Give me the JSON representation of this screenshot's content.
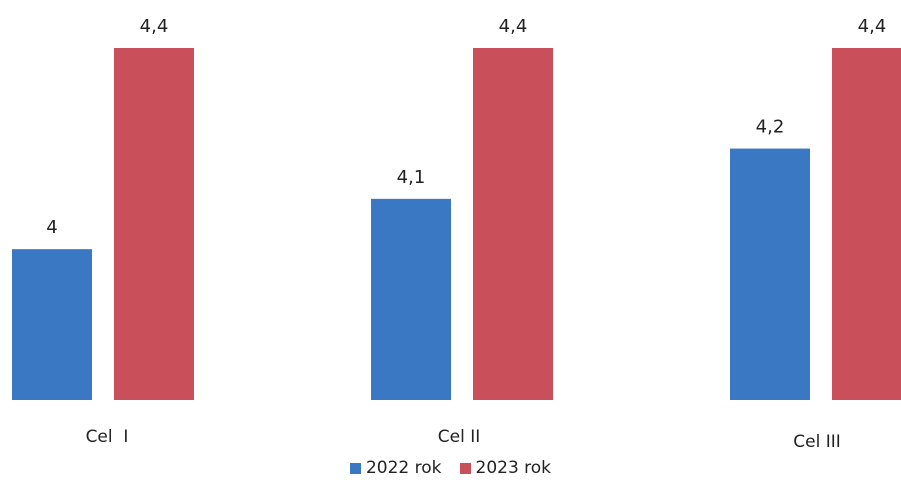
{
  "chart_data": {
    "type": "bar",
    "categories": [
      "Cel  I",
      "Cel II",
      "Cel III"
    ],
    "series": [
      {
        "name": "2022 rok",
        "values": [
          4.0,
          4.1,
          4.2
        ],
        "labels": [
          "4",
          "4,1",
          "4,2"
        ],
        "color": "#3b78c3"
      },
      {
        "name": "2023 rok",
        "values": [
          4.4,
          4.4,
          4.4
        ],
        "labels": [
          "4,4",
          "4,4",
          "4,4"
        ],
        "color": "#c9505a"
      }
    ],
    "title": "",
    "xlabel": "",
    "ylabel": "",
    "ylim": [
      3.7,
      4.4
    ],
    "grid": false,
    "legend_position": "bottom"
  }
}
